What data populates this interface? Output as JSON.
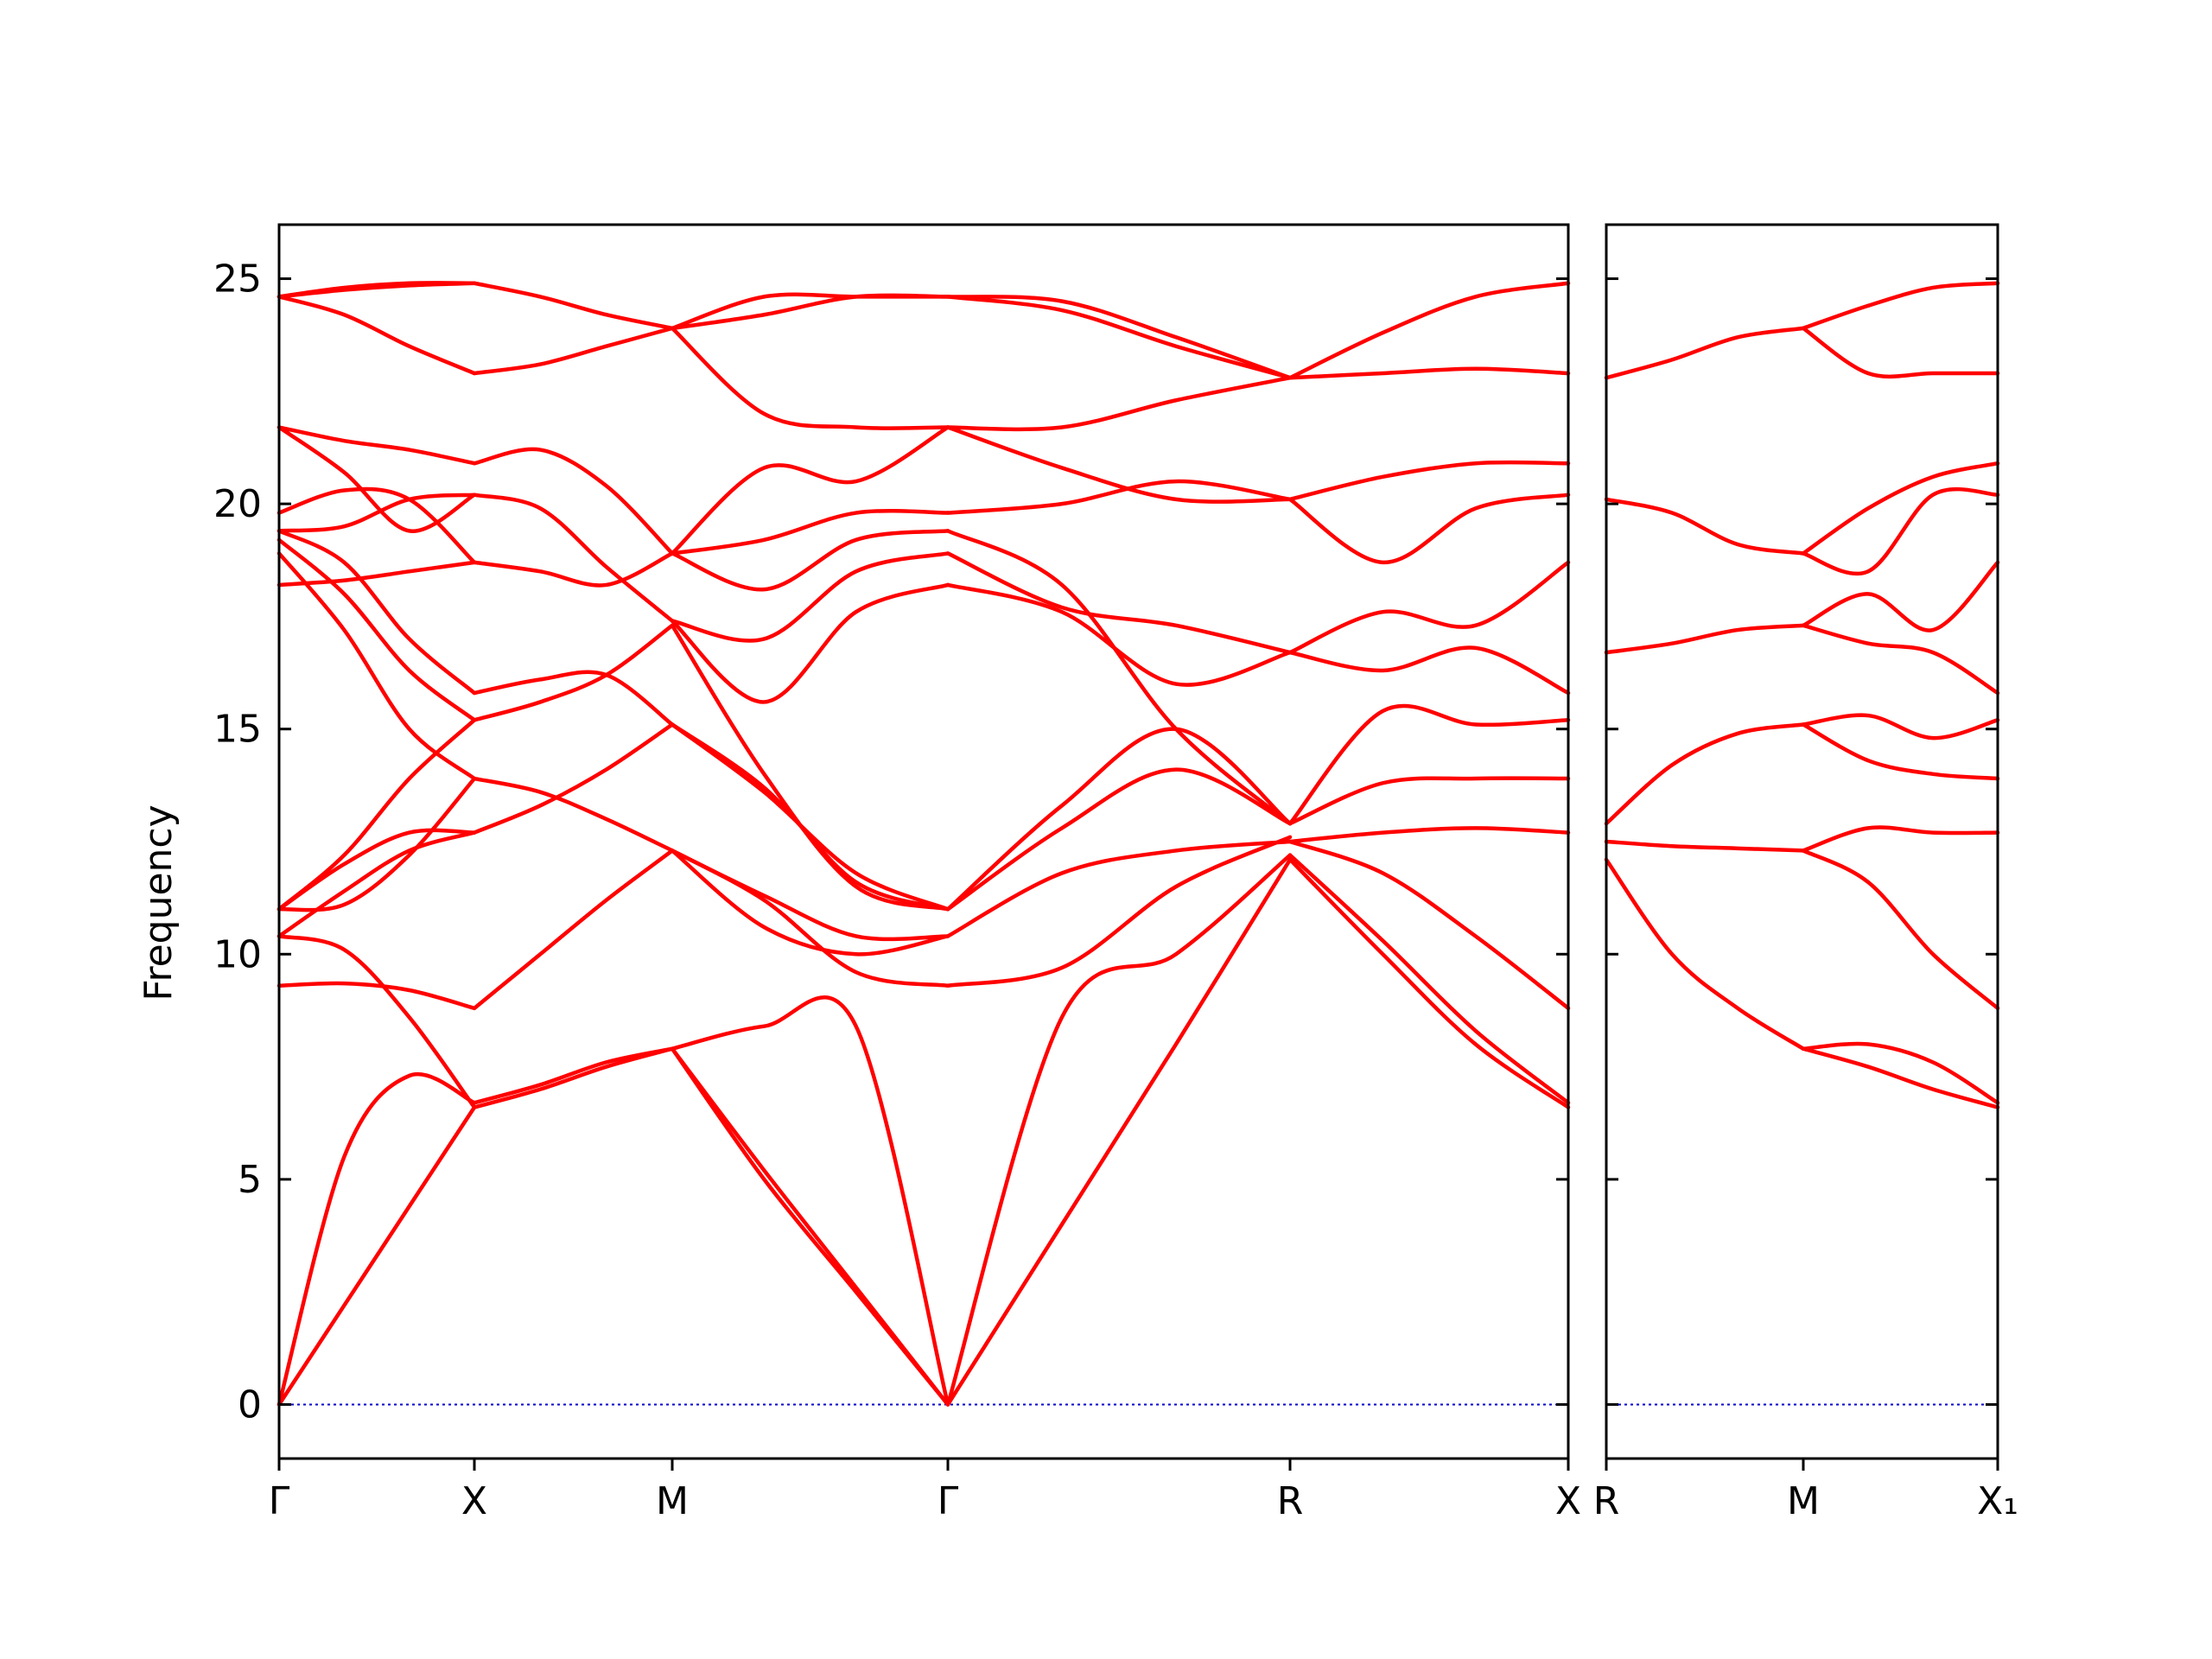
{
  "chart_data": {
    "type": "line",
    "ylabel": "Frequency",
    "xlabel": "",
    "ylim": [
      -1.2,
      26.2
    ],
    "yticks": [
      0,
      5,
      10,
      15,
      20,
      25
    ],
    "band_color": "#ff0000",
    "zero_line_color": "#0000cc",
    "panels": [
      {
        "xticks": [
          "Γ",
          "X",
          "M",
          "Γ",
          "R",
          "X"
        ],
        "segments": [
          {
            "from": "Γ",
            "to": "X",
            "bands": [
              [
                0.0,
                2.2,
                4.4,
                6.6
              ],
              [
                0.0,
                5.5,
                7.3,
                6.7
              ],
              [
                9.3,
                9.35,
                9.2,
                8.8
              ],
              [
                10.4,
                10.1,
                8.6,
                6.6
              ],
              [
                10.4,
                11.4,
                12.3,
                12.7
              ],
              [
                11.0,
                12.0,
                12.7,
                12.7
              ],
              [
                11.0,
                11.1,
                12.2,
                13.9
              ],
              [
                11.0,
                12.2,
                13.9,
                15.2
              ],
              [
                18.9,
                17.2,
                15.0,
                13.9
              ],
              [
                19.2,
                18.0,
                16.3,
                15.2
              ],
              [
                19.4,
                18.7,
                17.0,
                15.8
              ],
              [
                18.2,
                18.3,
                18.5,
                18.7
              ],
              [
                19.4,
                19.5,
                20.1,
                20.2
              ],
              [
                19.8,
                20.3,
                20.1,
                18.7
              ],
              [
                21.7,
                20.7,
                19.4,
                20.2
              ],
              [
                21.7,
                21.4,
                21.2,
                20.9
              ],
              [
                24.6,
                24.2,
                23.5,
                22.9
              ],
              [
                24.6,
                24.8,
                24.9,
                24.9
              ],
              [
                24.6,
                24.75,
                24.85,
                24.9
              ]
            ]
          },
          {
            "from": "X",
            "to": "M",
            "bands": [
              [
                6.6,
                7.0,
                7.5,
                7.9
              ],
              [
                6.7,
                7.1,
                7.6,
                7.9
              ],
              [
                8.8,
                10.0,
                11.2,
                12.3
              ],
              [
                12.7,
                13.3,
                14.1,
                15.1
              ],
              [
                13.9,
                13.6,
                13.0,
                12.3
              ],
              [
                15.2,
                15.6,
                16.2,
                17.3
              ],
              [
                15.8,
                16.1,
                16.2,
                15.1
              ],
              [
                18.7,
                18.5,
                18.2,
                18.9
              ],
              [
                20.2,
                19.9,
                18.6,
                17.4
              ],
              [
                20.9,
                21.2,
                20.4,
                18.9
              ],
              [
                22.9,
                23.1,
                23.5,
                23.9
              ],
              [
                24.9,
                24.6,
                24.2,
                23.9
              ]
            ]
          },
          {
            "from": "M",
            "to": "Γ",
            "bands": [
              [
                7.9,
                5.0,
                2.5,
                0.0
              ],
              [
                7.9,
                5.2,
                2.6,
                0.0
              ],
              [
                7.9,
                8.4,
                8.4,
                0.0
              ],
              [
                12.3,
                11.2,
                9.6,
                9.3
              ],
              [
                12.3,
                10.6,
                10.0,
                10.4
              ],
              [
                12.3,
                11.3,
                10.4,
                10.4
              ],
              [
                15.1,
                13.7,
                11.6,
                11.0
              ],
              [
                15.1,
                13.6,
                11.8,
                11.0
              ],
              [
                17.3,
                14.0,
                11.5,
                11.0
              ],
              [
                17.4,
                15.6,
                17.6,
                18.2
              ],
              [
                17.4,
                17.0,
                18.5,
                18.9
              ],
              [
                18.9,
                18.1,
                19.2,
                19.4
              ],
              [
                18.9,
                19.2,
                19.8,
                19.8
              ],
              [
                18.9,
                20.8,
                20.5,
                21.7
              ],
              [
                23.9,
                22.0,
                21.7,
                21.7
              ],
              [
                23.9,
                24.6,
                24.6,
                24.6
              ],
              [
                23.9,
                24.2,
                24.6,
                24.6
              ]
            ]
          },
          {
            "from": "Γ",
            "to": "R",
            "bands": [
              [
                0.0,
                4.0,
                8.0,
                12.1
              ],
              [
                0.0,
                8.6,
                10.0,
                12.2
              ],
              [
                9.3,
                9.7,
                11.5,
                12.6
              ],
              [
                10.4,
                11.8,
                12.3,
                12.5
              ],
              [
                11.0,
                12.8,
                14.1,
                12.9
              ],
              [
                11.0,
                13.3,
                15.0,
                12.9
              ],
              [
                18.2,
                17.6,
                16.0,
                16.7
              ],
              [
                18.9,
                17.7,
                17.3,
                16.7
              ],
              [
                19.4,
                18.2,
                15.0,
                12.9
              ],
              [
                19.8,
                20.0,
                20.5,
                20.1
              ],
              [
                21.7,
                20.8,
                20.1,
                20.1
              ],
              [
                21.7,
                21.7,
                22.3,
                22.8
              ],
              [
                24.6,
                24.5,
                23.7,
                22.8
              ],
              [
                24.6,
                24.3,
                23.5,
                22.8
              ]
            ]
          },
          {
            "from": "R",
            "to": "X",
            "bands": [
              [
                12.1,
                10.0,
                8.0,
                6.6
              ],
              [
                12.2,
                10.3,
                8.3,
                6.7
              ],
              [
                12.5,
                11.8,
                10.4,
                8.8
              ],
              [
                12.5,
                12.7,
                12.8,
                12.7
              ],
              [
                12.9,
                13.8,
                13.9,
                13.9
              ],
              [
                12.9,
                15.4,
                15.1,
                15.2
              ],
              [
                16.7,
                16.3,
                16.8,
                15.8
              ],
              [
                16.7,
                17.6,
                17.3,
                18.7
              ],
              [
                20.1,
                18.7,
                19.9,
                20.2
              ],
              [
                20.1,
                20.6,
                20.9,
                20.9
              ],
              [
                22.8,
                22.9,
                23.0,
                22.9
              ],
              [
                22.8,
                23.8,
                24.6,
                24.9
              ]
            ]
          }
        ]
      },
      {
        "xticks": [
          "R",
          "M",
          "X₁"
        ],
        "segments": [
          {
            "from": "R",
            "to": "M",
            "bands": [
              [
                12.1,
                10.0,
                8.8,
                7.9
              ],
              [
                12.5,
                12.4,
                12.35,
                12.3
              ],
              [
                12.9,
                14.2,
                14.9,
                15.1
              ],
              [
                16.7,
                16.9,
                17.2,
                17.3
              ],
              [
                20.1,
                19.8,
                19.1,
                18.9
              ],
              [
                22.8,
                23.2,
                23.7,
                23.9
              ]
            ]
          },
          {
            "from": "M",
            "to": "X₁",
            "bands": [
              [
                7.9,
                7.5,
                7.0,
                6.6
              ],
              [
                7.9,
                8.0,
                7.6,
                6.7
              ],
              [
                12.3,
                11.6,
                10.0,
                8.8
              ],
              [
                12.3,
                12.8,
                12.7,
                12.7
              ],
              [
                15.1,
                14.3,
                14.0,
                13.9
              ],
              [
                15.1,
                15.3,
                14.8,
                15.2
              ],
              [
                17.3,
                16.9,
                16.7,
                15.8
              ],
              [
                17.3,
                18.0,
                17.2,
                18.7
              ],
              [
                18.9,
                18.5,
                20.2,
                20.2
              ],
              [
                18.9,
                19.9,
                20.6,
                20.9
              ],
              [
                23.9,
                22.9,
                22.9,
                22.9
              ],
              [
                23.9,
                24.4,
                24.8,
                24.9
              ]
            ]
          }
        ]
      }
    ]
  }
}
